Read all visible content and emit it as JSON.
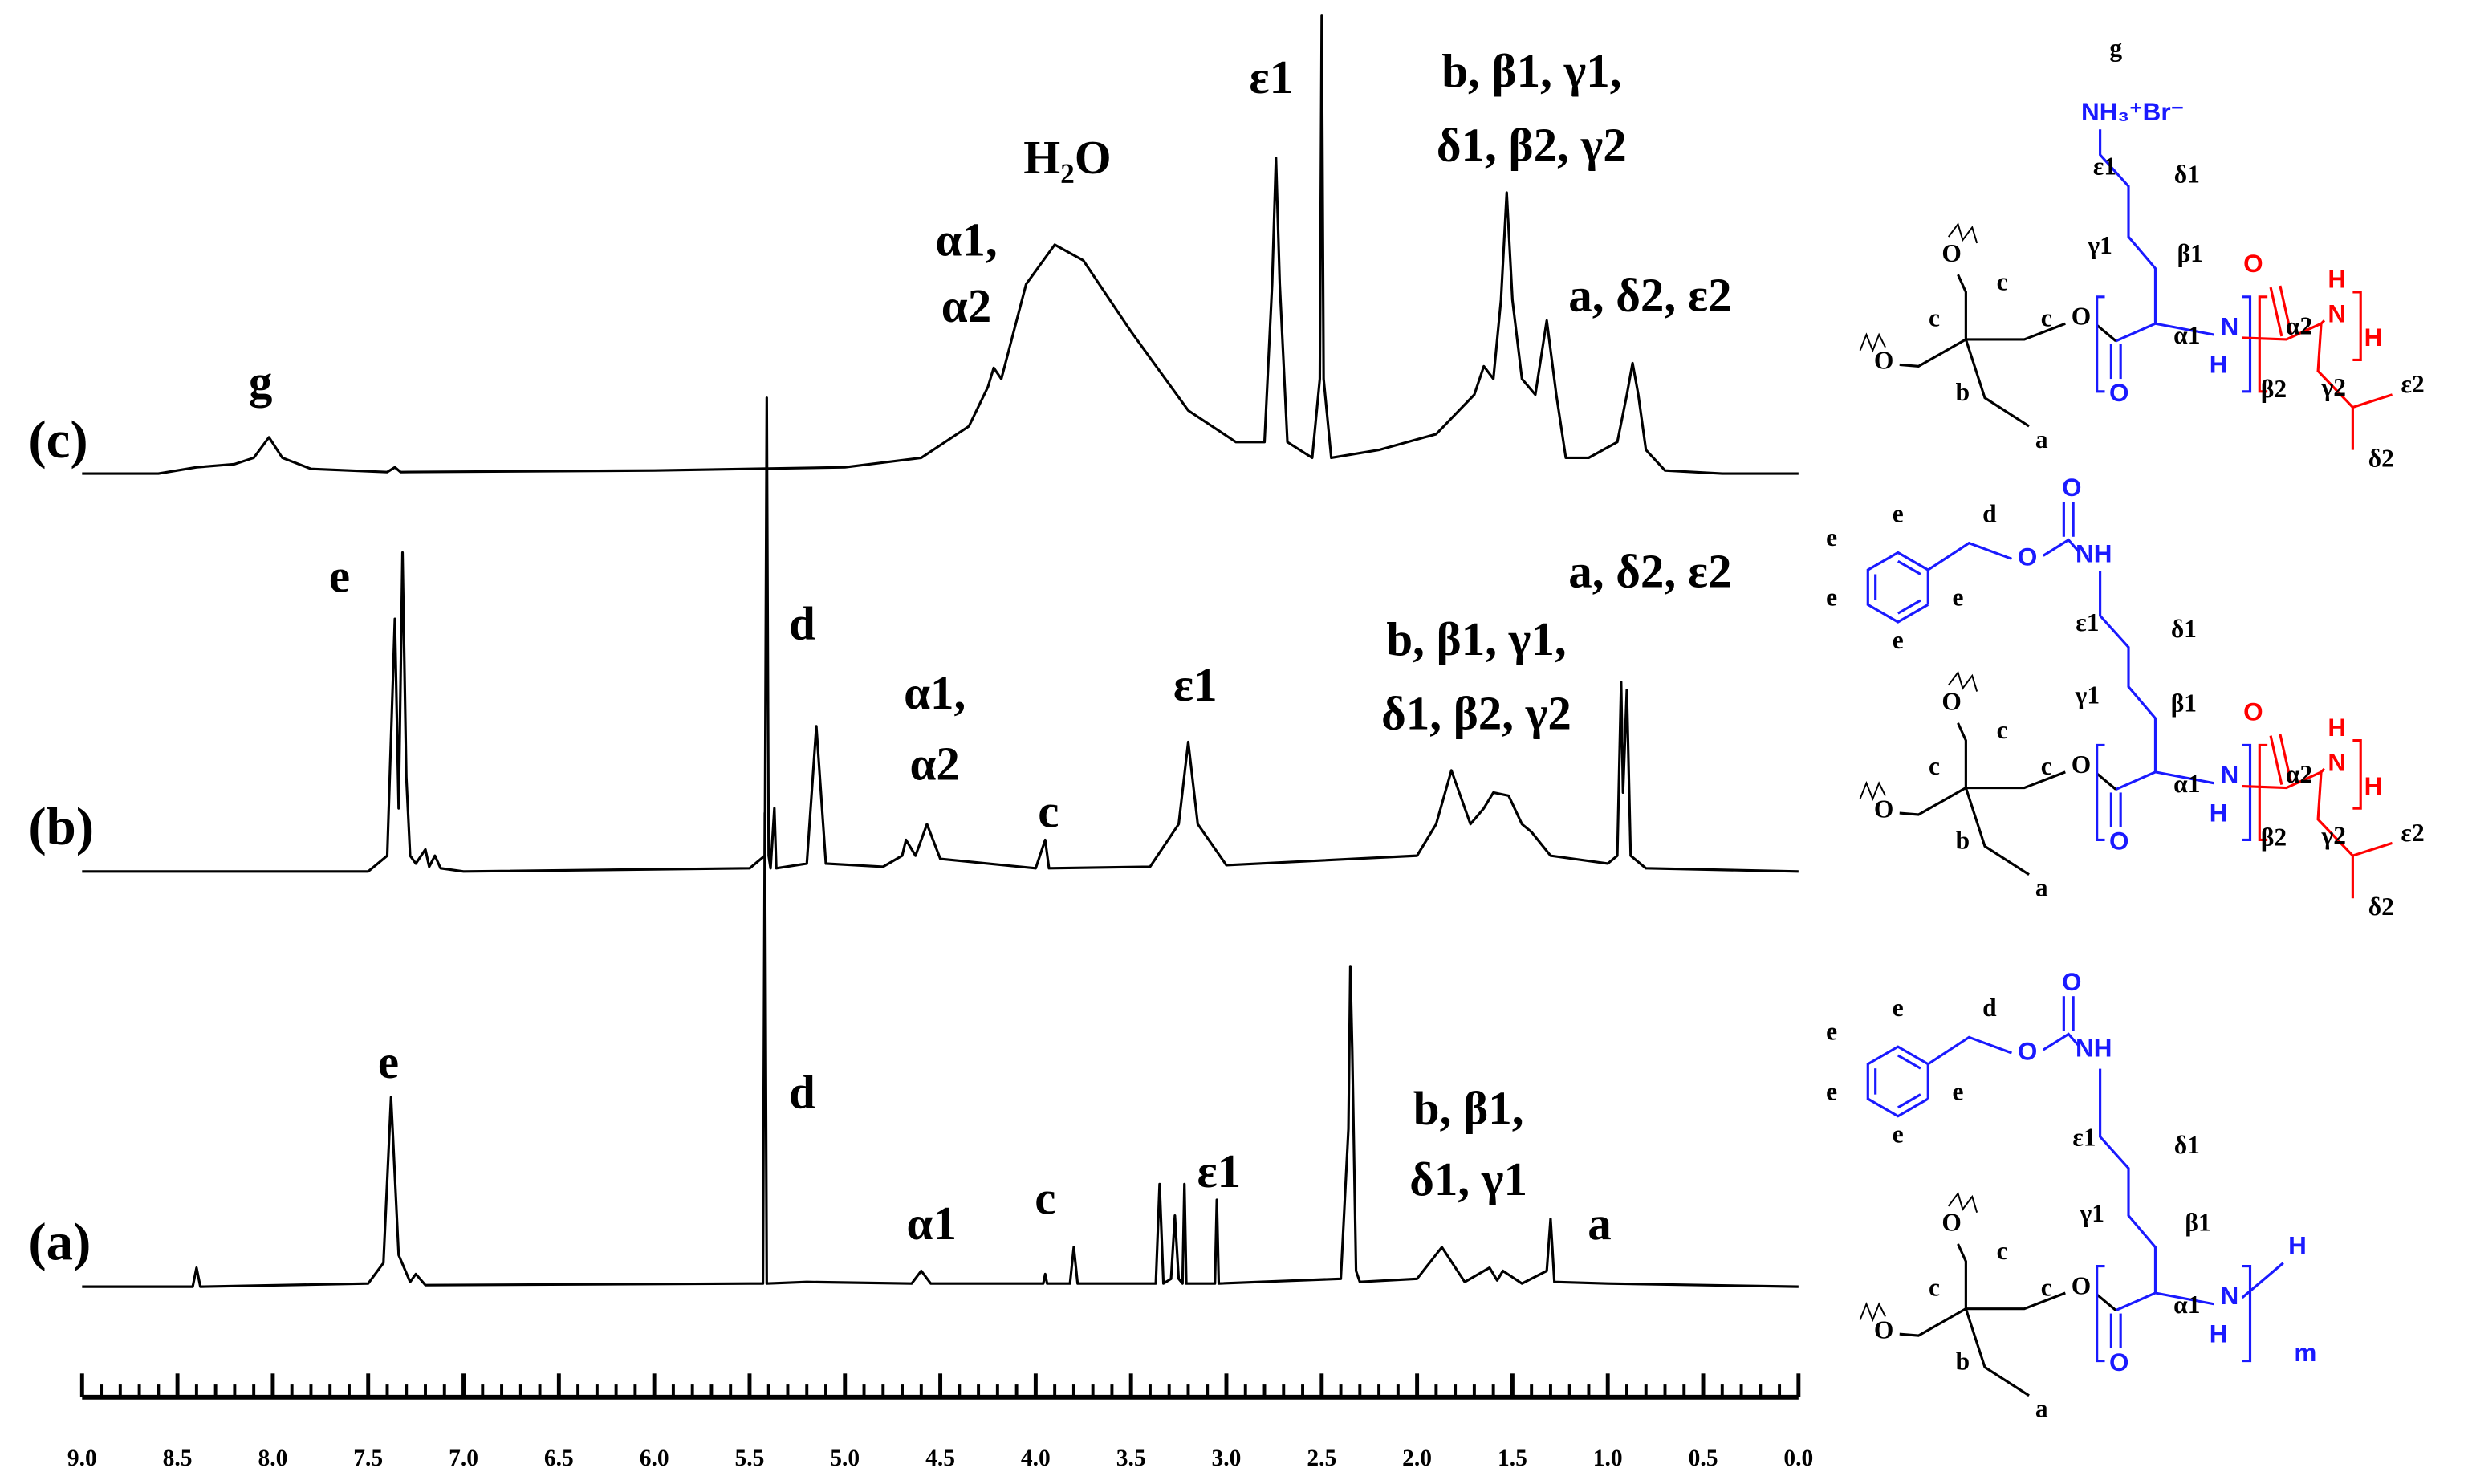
{
  "chart_data": {
    "type": "line",
    "xlim": [
      9,
      0
    ],
    "xticks": [
      {
        "value": 9,
        "label": "9.0"
      },
      8.5,
      {
        "value": 8,
        "label": "8.0"
      },
      7.5,
      {
        "value": 7,
        "label": "7.0"
      },
      6.5,
      {
        "value": 6,
        "label": "6.0"
      },
      5.5,
      {
        "value": 5,
        "label": "5.0"
      },
      4.5,
      {
        "value": 4,
        "label": "4.0"
      },
      3.5,
      {
        "value": 3,
        "label": "3.0"
      },
      2.5,
      {
        "value": 2,
        "label": "2.0"
      },
      1.5,
      {
        "value": 1,
        "label": "1.0"
      },
      0.5,
      {
        "value": 0,
        "label": "0.0"
      }
    ],
    "xminor": 0.1,
    "series": [
      {
        "name": "(c)",
        "color": "#000000",
        "x": [
          9.0,
          8.6,
          8.4,
          8.2,
          8.1,
          8.02,
          7.95,
          7.8,
          7.4,
          7.36,
          7.33,
          6.0,
          5.0,
          4.6,
          4.35,
          4.25,
          4.22,
          4.18,
          4.05,
          3.9,
          3.75,
          3.5,
          3.2,
          2.95,
          2.8,
          2.76,
          2.74,
          2.72,
          2.68,
          2.55,
          2.51,
          2.5,
          2.49,
          2.45,
          2.2,
          1.9,
          1.7,
          1.65,
          1.6,
          1.56,
          1.53,
          1.5,
          1.45,
          1.38,
          1.32,
          1.27,
          1.22,
          1.1,
          0.95,
          0.9,
          0.87,
          0.84,
          0.8,
          0.7,
          0.4,
          0.0
        ],
        "values": [
          0,
          0,
          4,
          6,
          10,
          23,
          10,
          3,
          1,
          4,
          1,
          2,
          4,
          10,
          30,
          55,
          67,
          60,
          120,
          145,
          135,
          90,
          40,
          20,
          20,
          120,
          200,
          120,
          20,
          10,
          60,
          290,
          60,
          10,
          15,
          25,
          50,
          68,
          60,
          110,
          178,
          110,
          60,
          50,
          97,
          50,
          10,
          10,
          20,
          50,
          70,
          50,
          15,
          2,
          0,
          0
        ]
      },
      {
        "name": "(b)",
        "color": "#000000",
        "x": [
          9.0,
          7.5,
          7.4,
          7.36,
          7.34,
          7.32,
          7.3,
          7.28,
          7.25,
          7.2,
          7.18,
          7.15,
          7.12,
          7.0,
          5.5,
          5.42,
          5.41,
          5.4,
          5.39,
          5.37,
          5.36,
          5.2,
          5.15,
          5.1,
          4.8,
          4.7,
          4.68,
          4.63,
          4.57,
          4.5,
          4.0,
          3.95,
          3.93,
          3.4,
          3.25,
          3.2,
          3.15,
          3.0,
          2.0,
          1.9,
          1.82,
          1.72,
          1.65,
          1.6,
          1.52,
          1.45,
          1.4,
          1.3,
          1.0,
          0.95,
          0.93,
          0.92,
          0.9,
          0.88,
          0.8,
          0.0
        ],
        "values": [
          0,
          0,
          10,
          160,
          40,
          202,
          60,
          10,
          5,
          14,
          3,
          10,
          2,
          0,
          2,
          10,
          300,
          10,
          2,
          40,
          2,
          5,
          92,
          5,
          3,
          10,
          20,
          10,
          30,
          8,
          2,
          20,
          2,
          3,
          30,
          82,
          30,
          4,
          10,
          30,
          64,
          30,
          40,
          50,
          48,
          30,
          25,
          10,
          5,
          10,
          120,
          50,
          115,
          10,
          2,
          0
        ]
      },
      {
        "name": "(a)",
        "color": "#000000",
        "x": [
          9.0,
          8.42,
          8.4,
          8.38,
          7.5,
          7.42,
          7.38,
          7.34,
          7.28,
          7.25,
          7.2,
          5.5,
          5.43,
          5.42,
          5.41,
          5.2,
          4.65,
          4.6,
          4.55,
          3.96,
          3.95,
          3.94,
          3.82,
          3.8,
          3.78,
          3.37,
          3.35,
          3.33,
          3.29,
          3.27,
          3.25,
          3.23,
          3.22,
          3.21,
          3.06,
          3.05,
          3.04,
          2.4,
          2.36,
          2.35,
          2.34,
          2.32,
          2.3,
          2.0,
          1.87,
          1.75,
          1.62,
          1.58,
          1.55,
          1.45,
          1.32,
          1.3,
          1.28,
          1.0,
          0.0
        ],
        "values": [
          0,
          0,
          12,
          0,
          2,
          15,
          120,
          20,
          3,
          8,
          1,
          2,
          2,
          300,
          2,
          3,
          2,
          10,
          2,
          2,
          8,
          2,
          2,
          25,
          2,
          2,
          65,
          2,
          5,
          45,
          5,
          2,
          65,
          2,
          2,
          55,
          2,
          5,
          100,
          203,
          150,
          10,
          3,
          5,
          25,
          3,
          12,
          4,
          10,
          2,
          10,
          43,
          3,
          2,
          0
        ]
      }
    ],
    "annotations": [
      "g",
      "α1,",
      "α2",
      "H₂O",
      "ε1",
      "b, β1, γ1,",
      "δ1, β2, γ2",
      "a, δ2, ε2",
      "e",
      "d",
      "α1,",
      "α2",
      "c",
      "ε1",
      "a, δ2, ε2",
      "b, β1, γ1,",
      "δ1, β2, γ2",
      "e",
      "d",
      "α1",
      "c",
      "ε1",
      "b, β1,",
      "δ1, γ1",
      "a"
    ]
  },
  "structures": [
    {
      "labels": [
        "g",
        "NH₃⁺Br⁻",
        "ε1",
        "δ1",
        "γ1",
        "β1",
        "O",
        "c",
        "c",
        "c",
        "O",
        "α1",
        "N",
        "H",
        "O",
        "O",
        "b",
        "a",
        "O",
        "α2",
        "H",
        "N",
        "H",
        "β2",
        "γ2",
        "ε2",
        "δ2"
      ]
    },
    {
      "labels": [
        "e",
        "e",
        "d",
        "e",
        "e",
        "e",
        "O",
        "O",
        "NH",
        "ε1",
        "δ1",
        "γ1",
        "β1",
        "O",
        "c",
        "c",
        "c",
        "O",
        "α1",
        "N",
        "H",
        "O",
        "O",
        "b",
        "a",
        "O",
        "α2",
        "H",
        "N",
        "H",
        "β2",
        "γ2",
        "ε2",
        "δ2"
      ]
    },
    {
      "labels": [
        "e",
        "e",
        "d",
        "e",
        "e",
        "e",
        "O",
        "O",
        "NH",
        "ε1",
        "δ1",
        "γ1",
        "β1",
        "O",
        "c",
        "c",
        "c",
        "O",
        "α1",
        "N",
        "H",
        "O",
        "O",
        "b",
        "a",
        "H",
        "m"
      ]
    }
  ]
}
